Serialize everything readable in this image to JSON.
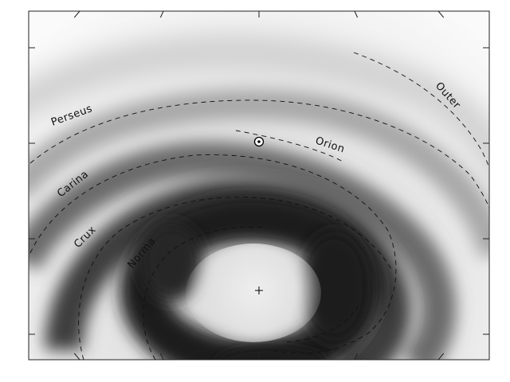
{
  "labels": {
    "perseus": "Perseus",
    "orion": "Orion",
    "carina": "Carina",
    "crux": "Crux",
    "norma": "Norma",
    "outer": "Outer"
  },
  "markers": {
    "sun_icon": "sun-symbol-icon",
    "center_icon": "galactic-center-cross-icon"
  },
  "colors": {
    "arm_dark": "#2b2b2b",
    "background": "#f4f4f4",
    "guide_line": "#111111"
  }
}
